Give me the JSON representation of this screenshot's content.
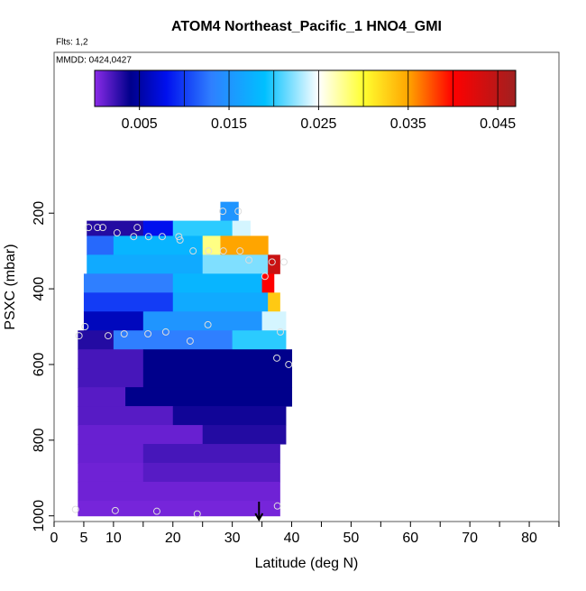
{
  "chart_data": {
    "type": "curtain",
    "title": "ATOM4 Northeast_Pacific_1 HNO4_GMI",
    "flights_label": "Flts: 1,2",
    "dates_label": "MMDD: 0424,0427",
    "xlabel": "Latitude (deg N)",
    "ylabel": "PSXC (mbar)",
    "xlim": [
      0,
      85
    ],
    "xticks": [
      0,
      5,
      10,
      20,
      30,
      40,
      50,
      60,
      70,
      80
    ],
    "xminor_ticks": [
      15,
      25,
      35,
      45,
      55,
      65,
      75,
      85
    ],
    "ylim": [
      1015,
      -225
    ],
    "yticks": [
      200,
      400,
      600,
      800,
      1000
    ],
    "clim": [
      0,
      0.047
    ],
    "cticks": [
      0.005,
      0.015,
      0.025,
      0.035,
      0.045
    ],
    "cdividers": [
      0.005,
      0.01,
      0.015,
      0.02,
      0.025,
      0.03,
      0.035,
      0.04,
      0.045
    ],
    "colormap": [
      [
        0,
        "#8b2be8"
      ],
      [
        0.004,
        "#00008b"
      ],
      [
        0.008,
        "#0010ee"
      ],
      [
        0.013,
        "#2f7fff"
      ],
      [
        0.019,
        "#00c0ff"
      ],
      [
        0.025,
        "#ffffff"
      ],
      [
        0.03,
        "#ffff30"
      ],
      [
        0.035,
        "#ffa500"
      ],
      [
        0.04,
        "#ff0000"
      ],
      [
        0.047,
        "#a02020"
      ]
    ],
    "rows": [
      {
        "p": [
          170,
          220
        ],
        "segments": [
          [
            28,
            31,
            0.015
          ]
        ]
      },
      {
        "p": [
          220,
          260
        ],
        "segments": [
          [
            5.5,
            15,
            0.003
          ],
          [
            15,
            20,
            0.008
          ],
          [
            20,
            30,
            0.02
          ],
          [
            30,
            33,
            0.024
          ]
        ]
      },
      {
        "p": [
          260,
          310
        ],
        "segments": [
          [
            5.5,
            10,
            0.012
          ],
          [
            10,
            25,
            0.018
          ],
          [
            25,
            28,
            0.028
          ],
          [
            28,
            36,
            0.035
          ]
        ]
      },
      {
        "p": [
          310,
          360
        ],
        "segments": [
          [
            5.5,
            25,
            0.017
          ],
          [
            25,
            36,
            0.022
          ],
          [
            36,
            38,
            0.044
          ]
        ]
      },
      {
        "p": [
          360,
          410
        ],
        "segments": [
          [
            5,
            20,
            0.013
          ],
          [
            20,
            35,
            0.018
          ],
          [
            35,
            37,
            0.04
          ]
        ]
      },
      {
        "p": [
          410,
          460
        ],
        "segments": [
          [
            5,
            20,
            0.01
          ],
          [
            20,
            36,
            0.017
          ],
          [
            36,
            38,
            0.033
          ]
        ]
      },
      {
        "p": [
          460,
          510
        ],
        "segments": [
          [
            5,
            15,
            0.006
          ],
          [
            15,
            35,
            0.015
          ],
          [
            35,
            39,
            0.024
          ]
        ]
      },
      {
        "p": [
          510,
          560
        ],
        "segments": [
          [
            4,
            10,
            0.003
          ],
          [
            10,
            30,
            0.013
          ],
          [
            30,
            39,
            0.02
          ]
        ]
      },
      {
        "p": [
          560,
          610
        ],
        "segments": [
          [
            4,
            15,
            0.002
          ],
          [
            15,
            40,
            0.004
          ]
        ]
      },
      {
        "p": [
          610,
          660
        ],
        "segments": [
          [
            4,
            15,
            0.002
          ],
          [
            15,
            40,
            0.004
          ]
        ]
      },
      {
        "p": [
          660,
          710
        ],
        "segments": [
          [
            4,
            12,
            0.0015
          ],
          [
            12,
            40,
            0.004
          ]
        ]
      },
      {
        "p": [
          710,
          760
        ],
        "segments": [
          [
            4,
            20,
            0.0015
          ],
          [
            20,
            39,
            0.0035
          ]
        ]
      },
      {
        "p": [
          760,
          810
        ],
        "segments": [
          [
            4,
            25,
            0.001
          ],
          [
            25,
            39,
            0.003
          ]
        ]
      },
      {
        "p": [
          810,
          860
        ],
        "segments": [
          [
            4,
            15,
            0.001
          ],
          [
            15,
            38,
            0.002
          ]
        ]
      },
      {
        "p": [
          860,
          910
        ],
        "segments": [
          [
            4,
            15,
            0.0008
          ],
          [
            15,
            38,
            0.0015
          ]
        ]
      },
      {
        "p": [
          910,
          960
        ],
        "segments": [
          [
            4,
            38,
            0.0008
          ]
        ]
      },
      {
        "p": [
          960,
          1000
        ],
        "segments": [
          [
            4,
            38,
            0.0006
          ]
        ]
      }
    ],
    "points": {
      "lat": [
        5.8,
        7.3,
        8.2,
        10.6,
        13.4,
        14,
        15.9,
        18.2,
        21,
        21.2,
        23.4,
        26,
        28.5,
        31.3,
        28.4,
        31,
        32.8,
        35.5,
        36.7,
        38.7,
        4.2,
        5.2,
        9.1,
        11.8,
        15.8,
        18.8,
        22.9,
        25.9,
        38.1,
        37.5,
        39.5,
        3.6,
        10.3,
        17.3,
        24.1,
        37.6
      ],
      "p": [
        238,
        238,
        238,
        252,
        262,
        238,
        262,
        262,
        262,
        271,
        300,
        300,
        300,
        300,
        195,
        195,
        324,
        367,
        329,
        329,
        524,
        500,
        524,
        519,
        519,
        514,
        538,
        495,
        514,
        583,
        600,
        983,
        986,
        988,
        995,
        974
      ]
    },
    "marker_lat": 34.5
  }
}
